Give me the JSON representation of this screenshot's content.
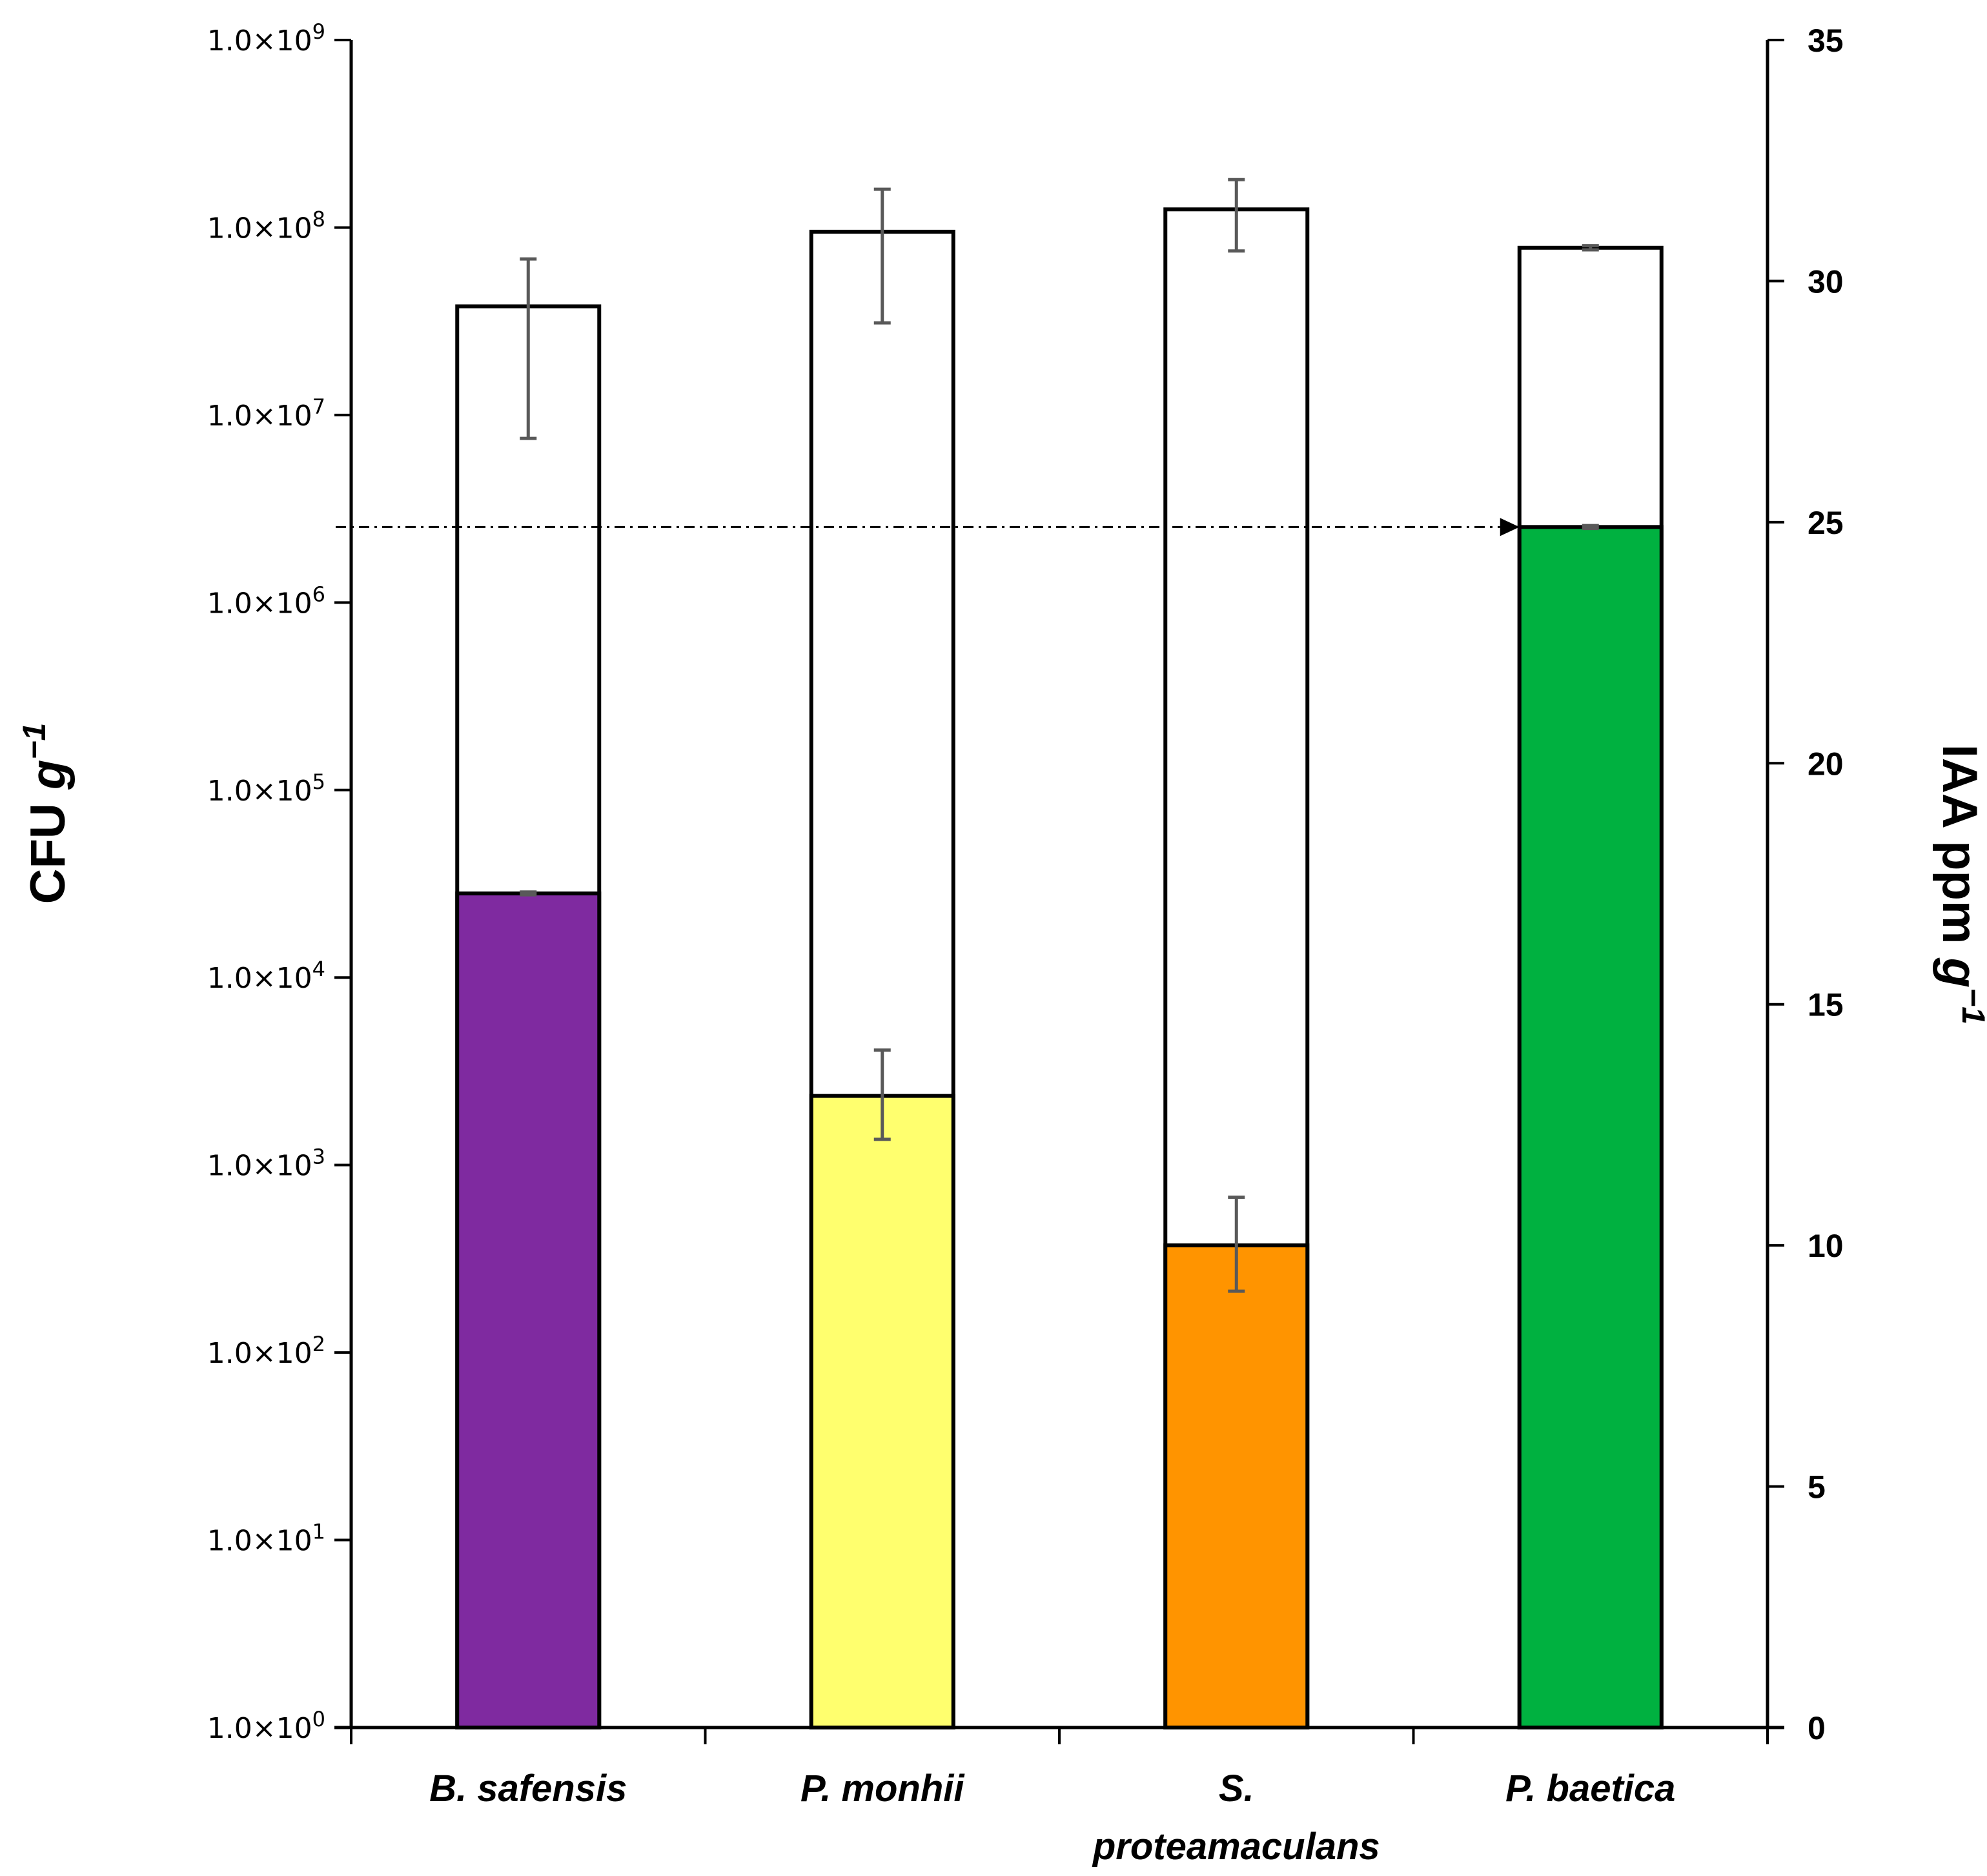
{
  "chart_data": {
    "type": "bar",
    "title": "",
    "categories": [
      "B. safensis",
      "P. monhii",
      "S. proteamaculans",
      "P. baetica"
    ],
    "category_lines": [
      [
        "B. safensis"
      ],
      [
        "P. monhii"
      ],
      [
        "S.",
        "proteamaculans"
      ],
      [
        "P. baetica"
      ]
    ],
    "left_axis": {
      "label_main": "CFU ",
      "label_italic": "g",
      "label_sup": "−1",
      "scale": "log10",
      "range_exponent": [
        0,
        9
      ],
      "tick_mantissa": "1.0×10",
      "tick_exponents": [
        "0",
        "1",
        "2",
        "3",
        "4",
        "5",
        "6",
        "7",
        "8",
        "9"
      ]
    },
    "right_axis": {
      "label_main": "IAA ppm ",
      "label_italic": "g",
      "label_sup": "−1",
      "range": [
        0,
        35
      ],
      "ticks": [
        0,
        5,
        10,
        15,
        20,
        25,
        30,
        35
      ]
    },
    "series": [
      {
        "name": "CFU g-1",
        "axis": "left",
        "style": "outline",
        "values": [
          38000000,
          95000000,
          125000000,
          78000000
        ],
        "error_low": [
          7500000,
          31000000,
          75000000,
          76000000
        ],
        "error_high": [
          68000000,
          160000000,
          180000000,
          80000000
        ]
      },
      {
        "name": "IAA ppm g-1",
        "axis": "right",
        "style": "filled",
        "values": [
          17.3,
          13.1,
          10.0,
          24.9
        ],
        "error_low": [
          17.27,
          12.2,
          9.05,
          24.87
        ],
        "error_high": [
          17.33,
          14.05,
          11.0,
          24.93
        ],
        "colors": [
          "#7f2aa0",
          "#ffff6e",
          "#ff9400",
          "#00b140"
        ]
      }
    ],
    "reference_line": {
      "axis": "right",
      "value": 24.9,
      "style": "dash-dot",
      "arrow": "right"
    }
  }
}
